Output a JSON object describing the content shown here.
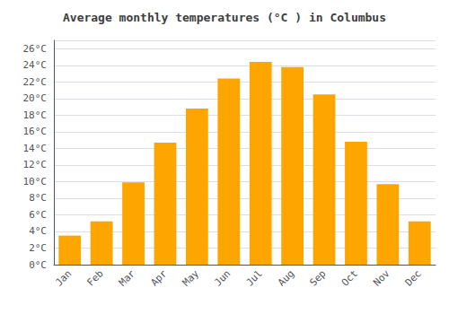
{
  "chart_data": {
    "type": "bar",
    "title": "Average monthly temperatures (°C ) in Columbus",
    "categories": [
      "Jan",
      "Feb",
      "Mar",
      "Apr",
      "May",
      "Jun",
      "Jul",
      "Aug",
      "Sep",
      "Oct",
      "Nov",
      "Dec"
    ],
    "values": [
      3.5,
      5.2,
      9.9,
      14.7,
      18.8,
      22.4,
      24.4,
      23.8,
      20.5,
      14.8,
      9.7,
      5.2
    ],
    "color": "#FFA500",
    "ylim": [
      0,
      27
    ],
    "yticks": [
      {
        "value": 0,
        "label": "0°C"
      },
      {
        "value": 2,
        "label": "2°C"
      },
      {
        "value": 4,
        "label": "4°C"
      },
      {
        "value": 6,
        "label": "6°C"
      },
      {
        "value": 8,
        "label": "8°C"
      },
      {
        "value": 10,
        "label": "10°C"
      },
      {
        "value": 12,
        "label": "12°C"
      },
      {
        "value": 14,
        "label": "14°C"
      },
      {
        "value": 16,
        "label": "16°C"
      },
      {
        "value": 18,
        "label": "18°C"
      },
      {
        "value": 20,
        "label": "20°C"
      },
      {
        "value": 22,
        "label": "22°C"
      },
      {
        "value": 24,
        "label": "24°C"
      },
      {
        "value": 26,
        "label": "26°C"
      }
    ],
    "grid": true
  }
}
